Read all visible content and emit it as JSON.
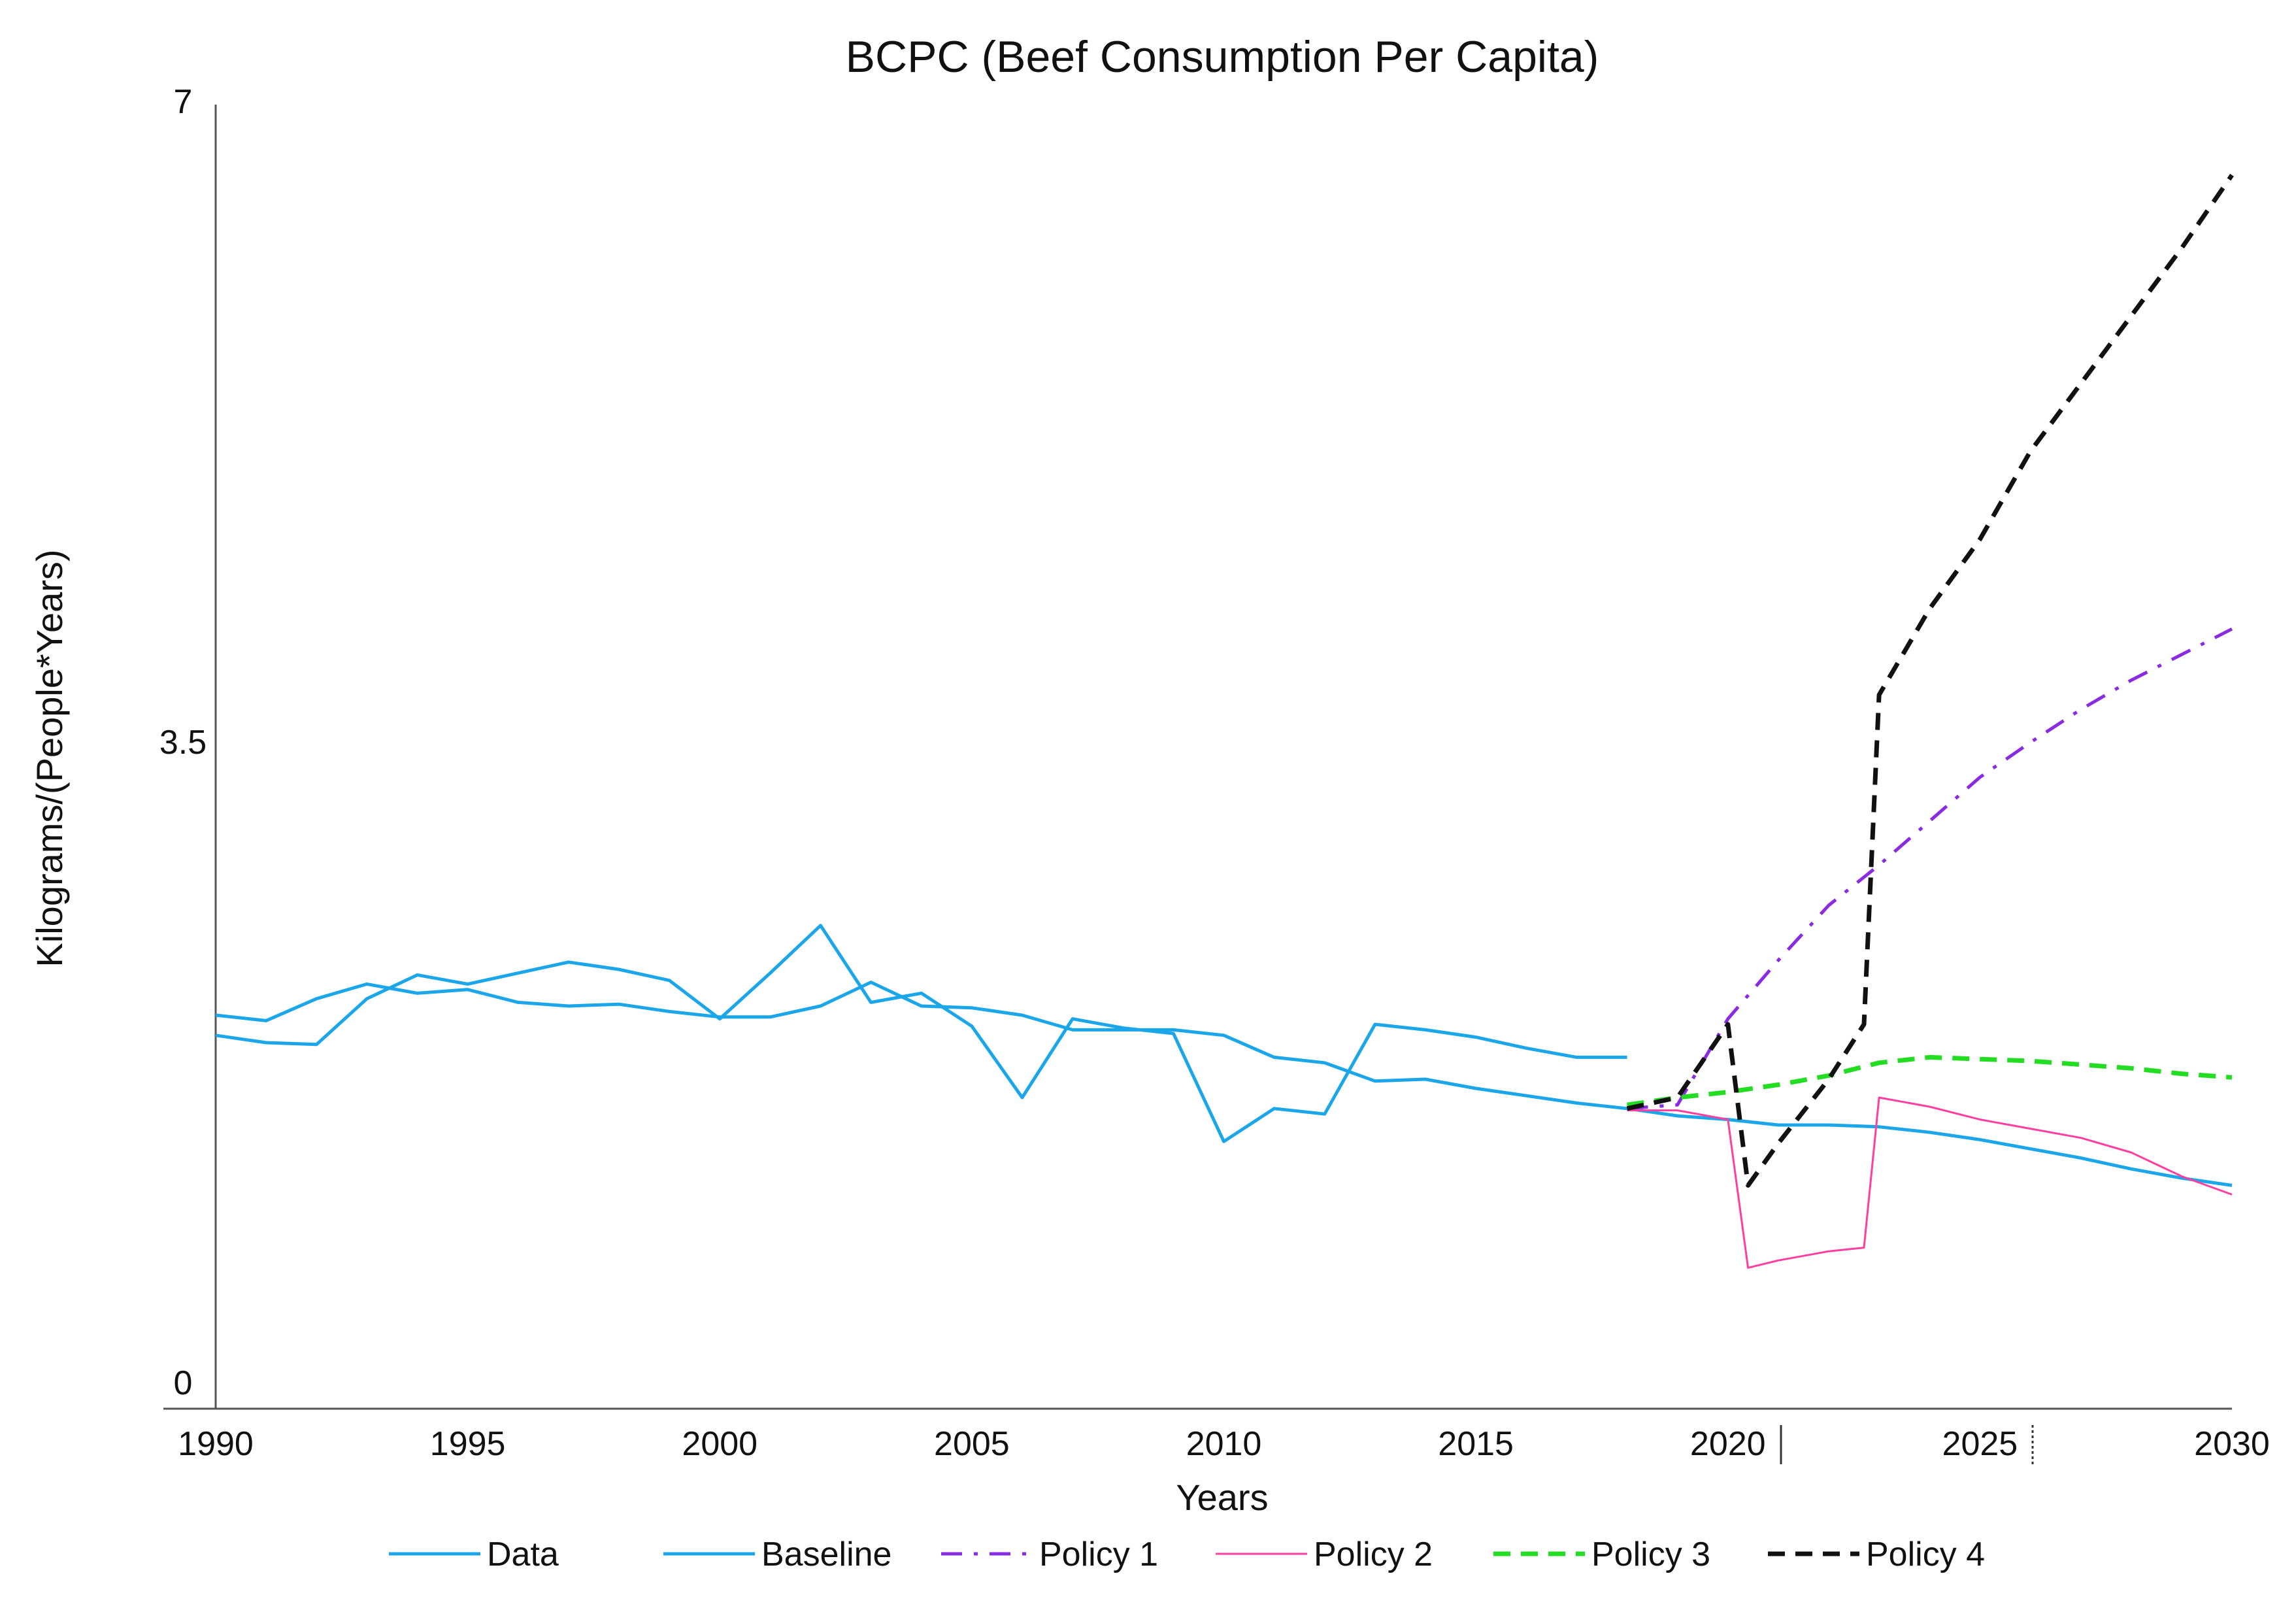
{
  "chart_data": {
    "type": "line",
    "title": "BCPC (Beef Consumption Per Capita)",
    "xlabel": "Years",
    "ylabel": "Kilograms/(People*Years)",
    "xlim": [
      1990,
      2030
    ],
    "ylim": [
      0,
      7
    ],
    "x_ticks": [
      "1990",
      "1995",
      "2000",
      "2005",
      "2010",
      "2015",
      "2020",
      "2025",
      "2030"
    ],
    "y_ticks": [
      "0",
      "3.5",
      "7"
    ],
    "legend_position": "bottom",
    "series": [
      {
        "name": "Data",
        "color": "#1aa6e8",
        "dash": "solid",
        "points": [
          [
            1990,
            2.04
          ],
          [
            1991,
            2.0
          ],
          [
            1992,
            1.99
          ],
          [
            1993,
            2.24
          ],
          [
            1994,
            2.37
          ],
          [
            1995,
            2.32
          ],
          [
            1996,
            2.38
          ],
          [
            1997,
            2.44
          ],
          [
            1998,
            2.4
          ],
          [
            1999,
            2.34
          ],
          [
            2000,
            2.13
          ],
          [
            2001,
            2.38
          ],
          [
            2002,
            2.64
          ],
          [
            2003,
            2.22
          ],
          [
            2004,
            2.27
          ],
          [
            2005,
            2.09
          ],
          [
            2006,
            1.7
          ],
          [
            2007,
            2.13
          ],
          [
            2008,
            2.08
          ],
          [
            2009,
            2.05
          ],
          [
            2010,
            1.46
          ],
          [
            2011,
            1.64
          ],
          [
            2012,
            1.61
          ],
          [
            2013,
            2.1
          ],
          [
            2014,
            2.07
          ],
          [
            2015,
            2.03
          ],
          [
            2016,
            1.97
          ],
          [
            2017,
            1.92
          ],
          [
            2018,
            1.92
          ]
        ]
      },
      {
        "name": "Baseline",
        "color": "#1aa6e8",
        "dash": "solid",
        "points": [
          [
            1990,
            2.15
          ],
          [
            1991,
            2.12
          ],
          [
            1992,
            2.24
          ],
          [
            1993,
            2.32
          ],
          [
            1994,
            2.27
          ],
          [
            1995,
            2.29
          ],
          [
            1996,
            2.22
          ],
          [
            1997,
            2.2
          ],
          [
            1998,
            2.21
          ],
          [
            1999,
            2.17
          ],
          [
            2000,
            2.14
          ],
          [
            2001,
            2.14
          ],
          [
            2002,
            2.2
          ],
          [
            2003,
            2.33
          ],
          [
            2004,
            2.2
          ],
          [
            2005,
            2.19
          ],
          [
            2006,
            2.15
          ],
          [
            2007,
            2.07
          ],
          [
            2008,
            2.07
          ],
          [
            2009,
            2.07
          ],
          [
            2010,
            2.04
          ],
          [
            2011,
            1.92
          ],
          [
            2012,
            1.89
          ],
          [
            2013,
            1.79
          ],
          [
            2014,
            1.8
          ],
          [
            2015,
            1.75
          ],
          [
            2016,
            1.71
          ],
          [
            2017,
            1.67
          ],
          [
            2018,
            1.64
          ],
          [
            2019,
            1.6
          ],
          [
            2020,
            1.58
          ],
          [
            2021,
            1.55
          ],
          [
            2022,
            1.55
          ],
          [
            2023,
            1.54
          ],
          [
            2024,
            1.51
          ],
          [
            2025,
            1.47
          ],
          [
            2026,
            1.42
          ],
          [
            2027,
            1.37
          ],
          [
            2028,
            1.31
          ],
          [
            2029,
            1.26
          ],
          [
            2030,
            1.22
          ]
        ]
      },
      {
        "name": "Policy 1",
        "color": "#8a2be2",
        "dash": "dashdot",
        "points": [
          [
            2018,
            1.64
          ],
          [
            2019,
            1.66
          ],
          [
            2020,
            2.13
          ],
          [
            2021,
            2.45
          ],
          [
            2022,
            2.75
          ],
          [
            2023,
            2.97
          ],
          [
            2024,
            3.21
          ],
          [
            2025,
            3.45
          ],
          [
            2026,
            3.64
          ],
          [
            2027,
            3.82
          ],
          [
            2028,
            3.98
          ],
          [
            2029,
            4.12
          ],
          [
            2030,
            4.26
          ]
        ]
      },
      {
        "name": "Policy 2",
        "color": "#ff3f9f",
        "dash": "thin",
        "points": [
          [
            2018,
            1.63
          ],
          [
            2019,
            1.63
          ],
          [
            2020,
            1.58
          ],
          [
            2020.4,
            0.77
          ],
          [
            2021,
            0.81
          ],
          [
            2022,
            0.86
          ],
          [
            2022.7,
            0.88
          ],
          [
            2023,
            1.7
          ],
          [
            2024,
            1.65
          ],
          [
            2025,
            1.58
          ],
          [
            2026,
            1.53
          ],
          [
            2027,
            1.48
          ],
          [
            2028,
            1.4
          ],
          [
            2029,
            1.27
          ],
          [
            2030,
            1.17
          ]
        ]
      },
      {
        "name": "Policy 3",
        "color": "#22dd22",
        "dash": "dashed",
        "points": [
          [
            2018,
            1.66
          ],
          [
            2019,
            1.7
          ],
          [
            2020,
            1.73
          ],
          [
            2021,
            1.77
          ],
          [
            2022,
            1.82
          ],
          [
            2023,
            1.89
          ],
          [
            2024,
            1.92
          ],
          [
            2025,
            1.91
          ],
          [
            2026,
            1.9
          ],
          [
            2027,
            1.88
          ],
          [
            2028,
            1.86
          ],
          [
            2029,
            1.83
          ],
          [
            2030,
            1.81
          ]
        ]
      },
      {
        "name": "Policy 4",
        "color": "#111111",
        "dash": "dashed",
        "points": [
          [
            2018,
            1.64
          ],
          [
            2019,
            1.7
          ],
          [
            2020,
            2.1
          ],
          [
            2020.4,
            1.22
          ],
          [
            2021,
            1.45
          ],
          [
            2022,
            1.8
          ],
          [
            2022.7,
            2.1
          ],
          [
            2023,
            3.9
          ],
          [
            2024,
            4.37
          ],
          [
            2025,
            4.75
          ],
          [
            2026,
            5.23
          ],
          [
            2027,
            5.6
          ],
          [
            2028,
            5.97
          ],
          [
            2029,
            6.34
          ],
          [
            2030,
            6.74
          ]
        ]
      }
    ]
  }
}
